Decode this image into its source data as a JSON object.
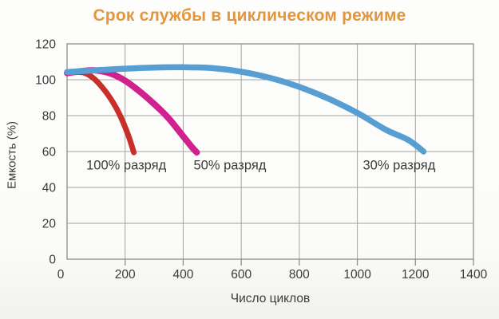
{
  "page": {
    "background": "#fbfbf8"
  },
  "chart_data": {
    "type": "area",
    "title": "Срок службы в циклическом режиме",
    "title_color": "#e2973e",
    "xlabel": "Число циклов",
    "ylabel": "Емкость (%)",
    "xlim": [
      0,
      1400
    ],
    "ylim": [
      0,
      120
    ],
    "xticks": [
      0,
      200,
      400,
      600,
      800,
      1000,
      1200,
      1400
    ],
    "yticks": [
      0,
      20,
      40,
      60,
      80,
      100,
      120
    ],
    "grid": true,
    "grid_color": "#a3a3a3",
    "border_color": "#8d8d8d",
    "axis_text_color": "#3b3b3b",
    "legend_position": "inline-labels",
    "series": [
      {
        "name": "100% разряд",
        "color": "#c72f2a",
        "band_width": 7,
        "label_x": 204,
        "label_y": 50,
        "x": [
          0,
          30,
          60,
          90,
          120,
          150,
          180,
          210,
          230
        ],
        "y": [
          103.5,
          104.2,
          103.8,
          101,
          96,
          89.5,
          81,
          69.5,
          59.5
        ]
      },
      {
        "name": "50% разряд",
        "color": "#d0218f",
        "band_width": 8,
        "label_x": 561,
        "label_y": 50,
        "x": [
          0,
          50,
          100,
          150,
          200,
          250,
          300,
          350,
          400,
          430,
          447
        ],
        "y": [
          103.8,
          104.8,
          105.2,
          103.5,
          99.5,
          93.5,
          86.5,
          78.5,
          68.5,
          62.5,
          59.5
        ]
      },
      {
        "name": "30% разряд",
        "color": "#579fd2",
        "band_width": 7.5,
        "label_x": 1144,
        "label_y": 50,
        "x": [
          0,
          100,
          200,
          300,
          400,
          500,
          600,
          700,
          800,
          900,
          1000,
          1100,
          1175,
          1228
        ],
        "y": [
          104.3,
          105.3,
          106.2,
          106.8,
          107,
          106.5,
          104.5,
          101,
          96,
          89.5,
          81.5,
          72,
          66.5,
          60
        ]
      }
    ]
  }
}
